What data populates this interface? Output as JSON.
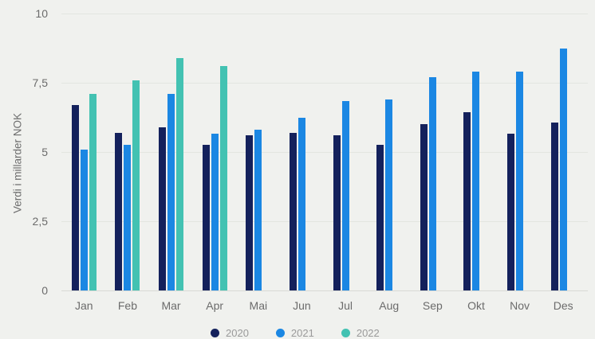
{
  "chart_data": {
    "type": "bar",
    "title": "",
    "xlabel": "",
    "ylabel": "Verdi i millarder NOK",
    "ylim": [
      0,
      10
    ],
    "grid": true,
    "legend_position": "bottom",
    "yticks": [
      {
        "value": 0,
        "label": "0"
      },
      {
        "value": 2.5,
        "label": "2,5"
      },
      {
        "value": 5,
        "label": "5"
      },
      {
        "value": 7.5,
        "label": "7,5"
      },
      {
        "value": 10,
        "label": "10"
      }
    ],
    "categories": [
      "Jan",
      "Feb",
      "Mar",
      "Apr",
      "Mai",
      "Jun",
      "Jul",
      "Aug",
      "Sep",
      "Okt",
      "Nov",
      "Des"
    ],
    "series": [
      {
        "name": "2020",
        "color": "#14215c",
        "values": [
          6.7,
          5.7,
          5.9,
          5.25,
          5.6,
          5.7,
          5.6,
          5.25,
          6.0,
          6.45,
          5.65,
          6.05
        ]
      },
      {
        "name": "2021",
        "color": "#1b87e3",
        "values": [
          5.1,
          5.25,
          7.1,
          5.65,
          5.8,
          6.25,
          6.85,
          6.9,
          7.7,
          7.9,
          7.9,
          8.75
        ]
      },
      {
        "name": "2022",
        "color": "#43c2b2",
        "values": [
          7.1,
          7.6,
          8.4,
          8.1,
          null,
          null,
          null,
          null,
          null,
          null,
          null,
          null
        ]
      }
    ]
  },
  "legend": {
    "items": [
      {
        "label": "2020",
        "color": "#14215c"
      },
      {
        "label": "2021",
        "color": "#1b87e3"
      },
      {
        "label": "2022",
        "color": "#43c2b2"
      }
    ]
  },
  "colors": {
    "background": "#f0f1ee",
    "gridline": "#e3e5e0",
    "baseline": "#d8dad5",
    "axis_text": "#6b6b6b",
    "legend_text": "#9a9a9a"
  }
}
